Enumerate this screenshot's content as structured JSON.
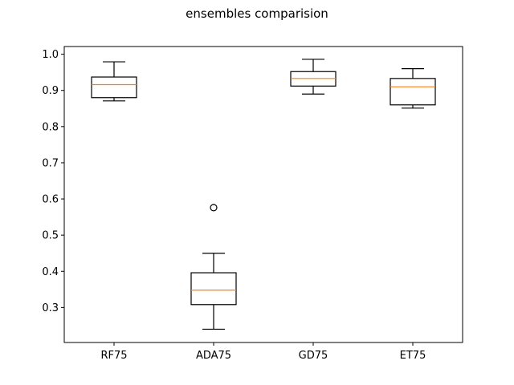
{
  "chart_data": {
    "type": "boxplot",
    "title": "ensembles comparision",
    "xlabel": "",
    "ylabel": "",
    "categories": [
      "RF75",
      "ADA75",
      "GD75",
      "ET75"
    ],
    "boxes": [
      {
        "label": "RF75",
        "whisker_low": 0.871,
        "q1": 0.88,
        "median": 0.916,
        "q3": 0.937,
        "whisker_high": 0.979,
        "fliers": []
      },
      {
        "label": "ADA75",
        "whisker_low": 0.24,
        "q1": 0.308,
        "median": 0.348,
        "q3": 0.396,
        "whisker_high": 0.45,
        "fliers": [
          0.576
        ]
      },
      {
        "label": "GD75",
        "whisker_low": 0.89,
        "q1": 0.912,
        "median": 0.933,
        "q3": 0.952,
        "whisker_high": 0.986,
        "fliers": []
      },
      {
        "label": "ET75",
        "whisker_low": 0.851,
        "q1": 0.86,
        "median": 0.91,
        "q3": 0.933,
        "whisker_high": 0.96,
        "fliers": []
      }
    ],
    "yticks": [
      0.3,
      0.4,
      0.5,
      0.6,
      0.7,
      0.8,
      0.9,
      1.0
    ],
    "ytick_labels": [
      "0.3",
      "0.4",
      "0.5",
      "0.6",
      "0.7",
      "0.8",
      "0.9",
      "1.0"
    ],
    "ylim": [
      0.2033,
      1.0213
    ],
    "grid": false,
    "legend": "none",
    "colors": {
      "box": "#000000",
      "median": "#ff7f0e",
      "flier": "#000000",
      "axes": "#000000"
    }
  }
}
